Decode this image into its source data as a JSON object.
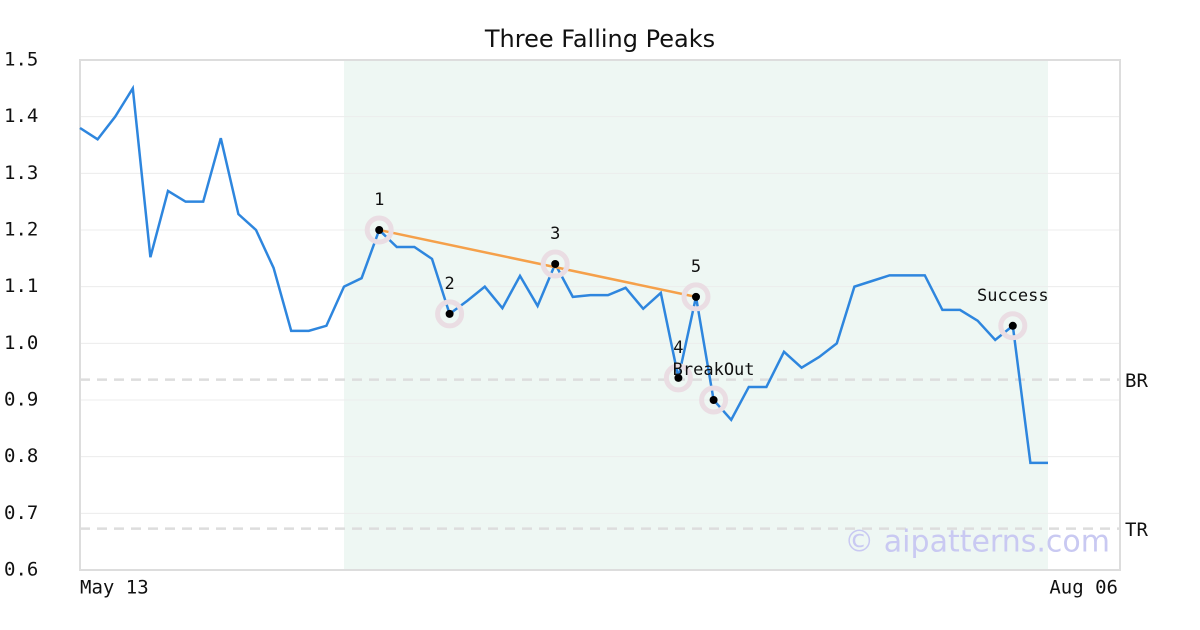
{
  "chart_data": {
    "type": "line",
    "title": "Three Falling Peaks",
    "categories": [
      "May 13",
      null,
      null,
      null,
      null,
      null,
      null,
      null,
      null,
      null,
      null,
      null,
      null,
      null,
      null,
      null,
      null,
      null,
      null,
      null,
      null,
      null,
      null,
      null,
      null,
      null,
      null,
      null,
      null,
      null,
      null,
      null,
      null,
      null,
      null,
      null,
      null,
      null,
      null,
      null,
      null,
      null,
      null,
      null,
      null,
      null,
      null,
      null,
      null,
      null,
      null,
      null,
      null,
      null,
      null,
      "Aug 06"
    ],
    "values": [
      1.38,
      1.36,
      1.4,
      1.45,
      1.152,
      1.269,
      1.25,
      1.25,
      1.362,
      1.228,
      1.2,
      1.133,
      1.022,
      1.022,
      1.031,
      1.1,
      1.115,
      1.2,
      1.17,
      1.17,
      1.149,
      1.052,
      1.075,
      1.1,
      1.062,
      1.119,
      1.066,
      1.14,
      1.082,
      1.085,
      1.085,
      1.098,
      1.061,
      1.089,
      0.939,
      1.082,
      0.9,
      0.865,
      0.923,
      0.923,
      0.985,
      0.957,
      0.976,
      1.0,
      1.1,
      1.11,
      1.12,
      1.12,
      1.12,
      1.059,
      1.059,
      1.04,
      1.006,
      1.031,
      0.789,
      0.789
    ],
    "color": "#2e86de",
    "ylim": [
      0.6,
      1.5
    ],
    "yticks": [
      0.6,
      0.7,
      0.8,
      0.9,
      {
        "value": 1,
        "label": "1.0"
      },
      1.1,
      1.2,
      1.3,
      1.4,
      1.5
    ],
    "grid": true,
    "highlight": [
      15,
      55
    ],
    "points": [
      {
        "label": "1",
        "x": 17,
        "value": 1.2
      },
      {
        "label": "2",
        "x": 21,
        "value": 1.052
      },
      {
        "label": "3",
        "x": 27,
        "value": 1.14
      },
      {
        "label": "4",
        "x": 34,
        "value": 0.939
      },
      {
        "label": "5",
        "x": 35,
        "value": 1.082
      },
      {
        "label": "BreakOut",
        "x": 36,
        "value": 0.9
      },
      {
        "label": "Success",
        "x": 53,
        "value": 1.031
      }
    ],
    "trend_points": [
      0,
      4
    ],
    "trend_color": "#f5a04a",
    "levels": [
      {
        "label": "BR",
        "value": 0.936
      },
      {
        "label": "TR",
        "value": 0.673
      }
    ],
    "watermark": "© aipatterns.com"
  }
}
